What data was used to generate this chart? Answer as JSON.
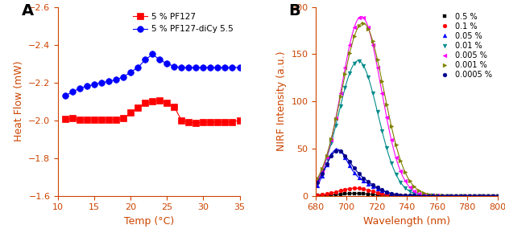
{
  "panel_A": {
    "label": "A",
    "xlabel": "Temp (°C)",
    "ylabel": "Heat Flow (mW)",
    "xlim": [
      10,
      35
    ],
    "ylim": [
      -2.6,
      -1.6
    ],
    "yticks": [
      -2.6,
      -2.4,
      -2.2,
      -2.0,
      -1.8,
      -1.6
    ],
    "xticks": [
      10,
      15,
      20,
      25,
      30,
      35
    ],
    "series": [
      {
        "label": "5 % PF127",
        "color": "#FF0000",
        "marker": "s",
        "x": [
          11,
          12,
          13,
          14,
          15,
          16,
          17,
          18,
          19,
          20,
          21,
          22,
          23,
          24,
          25,
          26,
          27,
          28,
          29,
          30,
          31,
          32,
          33,
          34,
          35
        ],
        "y": [
          -2.005,
          -2.01,
          -2.003,
          -2.003,
          -2.003,
          -2.003,
          -2.003,
          -2.003,
          -2.01,
          -2.04,
          -2.065,
          -2.09,
          -2.1,
          -2.105,
          -2.09,
          -2.07,
          -2.0,
          -1.99,
          -1.985,
          -1.99,
          -1.99,
          -1.99,
          -1.99,
          -1.99,
          -2.0
        ]
      },
      {
        "label": "5 % PF127-diCy 5.5",
        "color": "#0000FF",
        "marker": "o",
        "x": [
          11,
          12,
          13,
          14,
          15,
          16,
          17,
          18,
          19,
          20,
          21,
          22,
          23,
          24,
          25,
          26,
          27,
          28,
          29,
          30,
          31,
          32,
          33,
          34,
          35
        ],
        "y": [
          -2.13,
          -2.15,
          -2.17,
          -2.18,
          -2.19,
          -2.2,
          -2.205,
          -2.215,
          -2.23,
          -2.255,
          -2.28,
          -2.32,
          -2.35,
          -2.32,
          -2.3,
          -2.285,
          -2.28,
          -2.28,
          -2.28,
          -2.28,
          -2.28,
          -2.28,
          -2.28,
          -2.28,
          -2.28
        ]
      }
    ]
  },
  "panel_B": {
    "label": "B",
    "xlabel": "Wavelength (nm)",
    "ylabel": "NIRF Intensity (a.u.)",
    "xlim": [
      680,
      800
    ],
    "ylim": [
      0,
      200
    ],
    "yticks": [
      0,
      50,
      100,
      150,
      200
    ],
    "xticks": [
      680,
      700,
      720,
      740,
      760,
      780,
      800
    ],
    "series": [
      {
        "label": "0.5 %",
        "color": "#000000",
        "marker": "s",
        "peak": 706,
        "amplitude": 2.5,
        "sigma": 10,
        "has_secondary": false
      },
      {
        "label": "0.1 %",
        "color": "#FF0000",
        "marker": "o",
        "peak": 706,
        "amplitude": 8,
        "sigma": 11,
        "has_secondary": false
      },
      {
        "label": "0.05 %",
        "color": "#0000FF",
        "marker": "^",
        "peak": 693,
        "amplitude": 40,
        "sigma": 7,
        "secondary_peak": 706,
        "secondary_amplitude": 16,
        "secondary_sigma": 12,
        "has_secondary": true
      },
      {
        "label": "0.01 %",
        "color": "#008B8B",
        "marker": "v",
        "peak": 708,
        "amplitude": 143,
        "sigma": 13,
        "has_secondary": false
      },
      {
        "label": "0.005 %",
        "color": "#FF00FF",
        "marker": "<",
        "peak": 710,
        "amplitude": 190,
        "sigma": 13,
        "has_secondary": false
      },
      {
        "label": "0.001 %",
        "color": "#808000",
        "marker": ">",
        "peak": 711,
        "amplitude": 183,
        "sigma": 14,
        "has_secondary": false
      },
      {
        "label": "0.0005 %",
        "color": "#00008B",
        "marker": "o",
        "peak": 693,
        "amplitude": 37,
        "sigma": 8,
        "secondary_peak": 706,
        "secondary_amplitude": 18,
        "secondary_sigma": 12,
        "has_secondary": true
      }
    ]
  }
}
